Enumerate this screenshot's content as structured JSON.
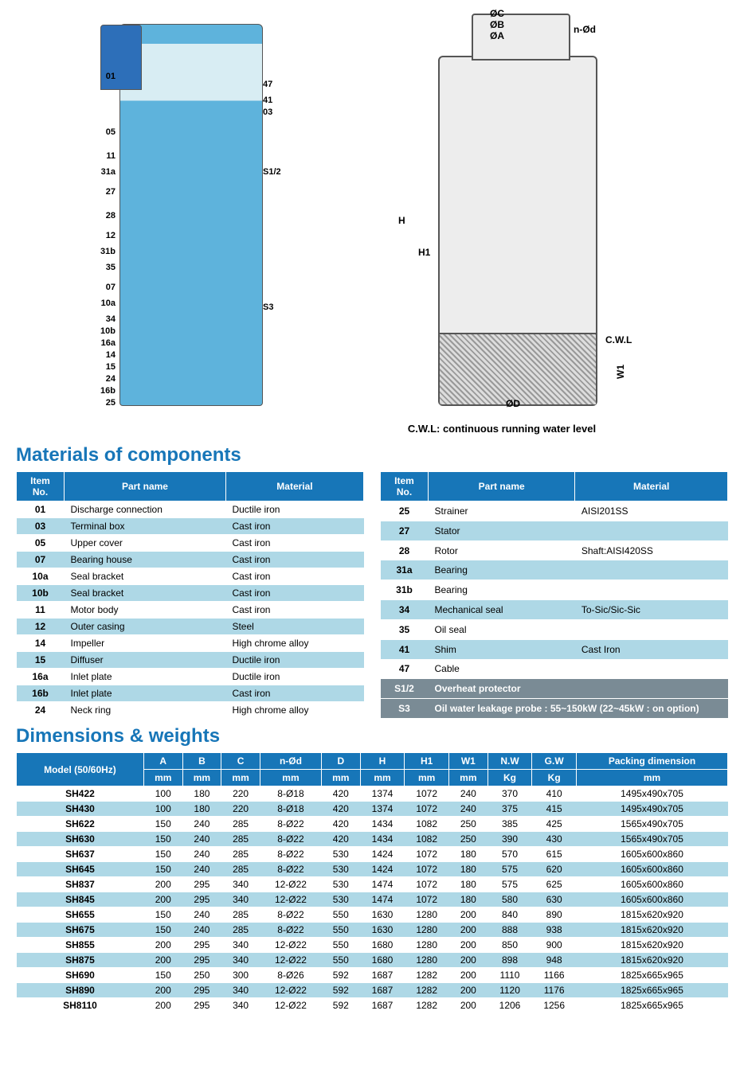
{
  "diagrams": {
    "callouts_left": [
      "01",
      "05",
      "11",
      "31a",
      "27",
      "28",
      "12",
      "31b",
      "35",
      "07",
      "10a",
      "34",
      "10b",
      "16a",
      "14",
      "15",
      "24",
      "16b",
      "25"
    ],
    "callouts_right": [
      "47",
      "41",
      "03",
      "S1/2",
      "S3"
    ],
    "dim_labels": [
      "ØC",
      "ØB",
      "ØA",
      "n-Ød",
      "H",
      "H1",
      "W1",
      "ØD",
      "C.W.L"
    ],
    "cwl_note": "C.W.L: continuous running water level"
  },
  "headings": {
    "materials": "Materials of components",
    "dimensions": "Dimensions & weights"
  },
  "materials_table": {
    "headers": [
      "Item No.",
      "Part name",
      "Material"
    ],
    "left_rows": [
      [
        "01",
        "Discharge connection",
        "Ductile iron"
      ],
      [
        "03",
        "Terminal box",
        "Cast iron"
      ],
      [
        "05",
        "Upper cover",
        "Cast iron"
      ],
      [
        "07",
        "Bearing house",
        "Cast iron"
      ],
      [
        "10a",
        "Seal bracket",
        "Cast iron"
      ],
      [
        "10b",
        "Seal bracket",
        "Cast iron"
      ],
      [
        "11",
        "Motor body",
        "Cast iron"
      ],
      [
        "12",
        "Outer casing",
        "Steel"
      ],
      [
        "14",
        "Impeller",
        "High chrome alloy"
      ],
      [
        "15",
        "Diffuser",
        "Ductile iron"
      ],
      [
        "16a",
        "Inlet plate",
        "Ductile iron"
      ],
      [
        "16b",
        "Inlet plate",
        "Cast iron"
      ],
      [
        "24",
        "Neck ring",
        "High chrome alloy"
      ]
    ],
    "right_rows": [
      [
        "25",
        "Strainer",
        "AISI201SS"
      ],
      [
        "27",
        "Stator",
        ""
      ],
      [
        "28",
        "Rotor",
        "Shaft:AISI420SS"
      ],
      [
        "31a",
        "Bearing",
        ""
      ],
      [
        "31b",
        "Bearing",
        ""
      ],
      [
        "34",
        "Mechanical seal",
        "To-Sic/Sic-Sic"
      ],
      [
        "35",
        "Oil seal",
        ""
      ],
      [
        "41",
        "Shim",
        "Cast Iron"
      ],
      [
        "47",
        "Cable",
        ""
      ]
    ],
    "sensor_rows": [
      [
        "S1/2",
        "Overheat protector"
      ],
      [
        "S3",
        "Oil water leakage probe : 55~150kW (22~45kW : on option)"
      ]
    ]
  },
  "dimensions_table": {
    "top_headers": [
      "Model (50/60Hz)",
      "A",
      "B",
      "C",
      "n-Ød",
      "D",
      "H",
      "H1",
      "W1",
      "N.W",
      "G.W",
      "Packing dimension"
    ],
    "unit_headers": [
      "",
      "mm",
      "mm",
      "mm",
      "mm",
      "mm",
      "mm",
      "mm",
      "mm",
      "Kg",
      "Kg",
      "mm"
    ],
    "rows": [
      [
        "SH422",
        "100",
        "180",
        "220",
        "8-Ø18",
        "420",
        "1374",
        "1072",
        "240",
        "370",
        "410",
        "1495x490x705"
      ],
      [
        "SH430",
        "100",
        "180",
        "220",
        "8-Ø18",
        "420",
        "1374",
        "1072",
        "240",
        "375",
        "415",
        "1495x490x705"
      ],
      [
        "SH622",
        "150",
        "240",
        "285",
        "8-Ø22",
        "420",
        "1434",
        "1082",
        "250",
        "385",
        "425",
        "1565x490x705"
      ],
      [
        "SH630",
        "150",
        "240",
        "285",
        "8-Ø22",
        "420",
        "1434",
        "1082",
        "250",
        "390",
        "430",
        "1565x490x705"
      ],
      [
        "SH637",
        "150",
        "240",
        "285",
        "8-Ø22",
        "530",
        "1424",
        "1072",
        "180",
        "570",
        "615",
        "1605x600x860"
      ],
      [
        "SH645",
        "150",
        "240",
        "285",
        "8-Ø22",
        "530",
        "1424",
        "1072",
        "180",
        "575",
        "620",
        "1605x600x860"
      ],
      [
        "SH837",
        "200",
        "295",
        "340",
        "12-Ø22",
        "530",
        "1474",
        "1072",
        "180",
        "575",
        "625",
        "1605x600x860"
      ],
      [
        "SH845",
        "200",
        "295",
        "340",
        "12-Ø22",
        "530",
        "1474",
        "1072",
        "180",
        "580",
        "630",
        "1605x600x860"
      ],
      [
        "SH655",
        "150",
        "240",
        "285",
        "8-Ø22",
        "550",
        "1630",
        "1280",
        "200",
        "840",
        "890",
        "1815x620x920"
      ],
      [
        "SH675",
        "150",
        "240",
        "285",
        "8-Ø22",
        "550",
        "1630",
        "1280",
        "200",
        "888",
        "938",
        "1815x620x920"
      ],
      [
        "SH855",
        "200",
        "295",
        "340",
        "12-Ø22",
        "550",
        "1680",
        "1280",
        "200",
        "850",
        "900",
        "1815x620x920"
      ],
      [
        "SH875",
        "200",
        "295",
        "340",
        "12-Ø22",
        "550",
        "1680",
        "1280",
        "200",
        "898",
        "948",
        "1815x620x920"
      ],
      [
        "SH690",
        "150",
        "250",
        "300",
        "8-Ø26",
        "592",
        "1687",
        "1282",
        "200",
        "1110",
        "1166",
        "1825x665x965"
      ],
      [
        "SH890",
        "200",
        "295",
        "340",
        "12-Ø22",
        "592",
        "1687",
        "1282",
        "200",
        "1120",
        "1176",
        "1825x665x965"
      ],
      [
        "SH8110",
        "200",
        "295",
        "340",
        "12-Ø22",
        "592",
        "1687",
        "1282",
        "200",
        "1206",
        "1256",
        "1825x665x965"
      ]
    ]
  },
  "colors": {
    "brand_blue": "#1776b8",
    "row_alt": "#aed8e6",
    "sensor_grey": "#7a8b95"
  }
}
